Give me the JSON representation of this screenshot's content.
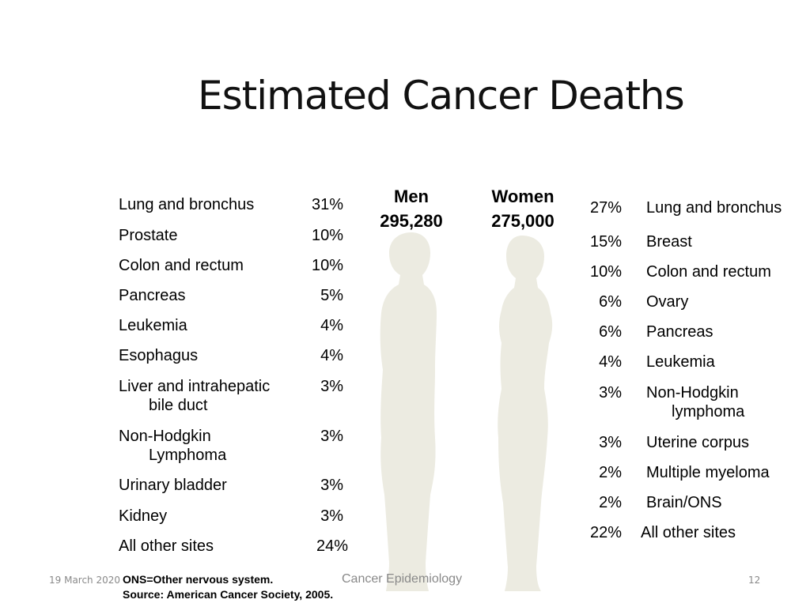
{
  "title": "Estimated Cancer Deaths",
  "men": {
    "label": "Men",
    "total": "295,280",
    "rows": [
      {
        "site": "Lung and bronchus",
        "pct": "31%"
      },
      {
        "site": "Prostate",
        "pct": "10%"
      },
      {
        "site": "Colon and rectum",
        "pct": "10%"
      },
      {
        "site": "Pancreas",
        "pct": "5%"
      },
      {
        "site": "Leukemia",
        "pct": "4%"
      },
      {
        "site": "Esophagus",
        "pct": "4%"
      },
      {
        "site": "Liver and intrahepatic",
        "site_cont": "bile duct",
        "pct": "3%"
      },
      {
        "site": "Non-Hodgkin",
        "site_cont": "Lymphoma",
        "pct": "3%"
      },
      {
        "site": "Urinary bladder",
        "pct": "3%"
      },
      {
        "site": "Kidney",
        "pct": "3%"
      },
      {
        "site": "All other sites",
        "pct": "24%"
      }
    ]
  },
  "women": {
    "label": "Women",
    "total": "275,000",
    "rows": [
      {
        "pct": "27%",
        "site": "Lung and bronchus"
      },
      {
        "pct": "15%",
        "site": "Breast"
      },
      {
        "pct": "10%",
        "site": "Colon and rectum"
      },
      {
        "pct": "6%",
        "site": "Ovary"
      },
      {
        "pct": "6%",
        "site": "Pancreas"
      },
      {
        "pct": "4%",
        "site": "Leukemia"
      },
      {
        "pct": "3%",
        "site": "Non-Hodgkin",
        "site_cont": "lymphoma"
      },
      {
        "pct": "3%",
        "site": "Uterine corpus"
      },
      {
        "pct": "2%",
        "site": "Multiple myeloma"
      },
      {
        "pct": "2%",
        "site": "Brain/ONS"
      },
      {
        "pct": "22%",
        "site": "All other sites"
      }
    ]
  },
  "footnote": {
    "line1": "ONS=Other nervous system.",
    "line2": "Source: American Cancer Society, 2005."
  },
  "footer": {
    "date": "19 March 2020",
    "center": "Cancer Epidemiology",
    "page": "12"
  },
  "colors": {
    "silhouette": "#ecebe1",
    "footer_text": "#898989"
  }
}
